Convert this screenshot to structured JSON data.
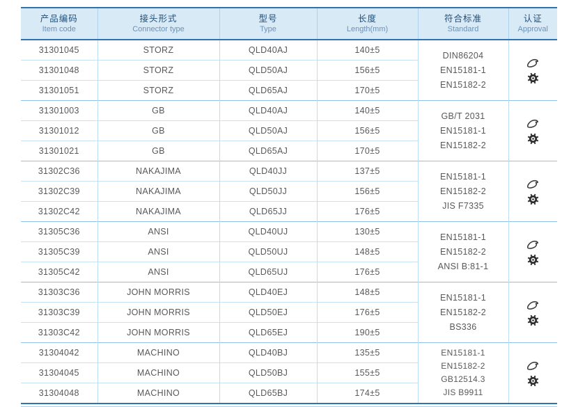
{
  "table": {
    "columns": [
      {
        "zh": "产品编码",
        "en": "Item code"
      },
      {
        "zh": "接头形式",
        "en": "Connector type"
      },
      {
        "zh": "型号",
        "en": "Type"
      },
      {
        "zh": "长度",
        "en": "Length(mm)"
      },
      {
        "zh": "符合标准",
        "en": "Standard"
      },
      {
        "zh": "认证",
        "en": "Approval"
      }
    ],
    "approval_icon_names": [
      "certificate-logo-icon",
      "ship-wheel-mark-icon"
    ],
    "colors": {
      "border_dark": "#2e74b5",
      "header_bg": "#d9eaf7",
      "header_zh_text": "#1f4e79",
      "header_en_text": "#6b91b8",
      "body_text": "#595959",
      "row_line": "#c9e3f6",
      "group_line": "#8fc1e8",
      "column_line": "#bcdcf4"
    },
    "groups": [
      {
        "rows": [
          {
            "code": "31301045",
            "connector": "STORZ",
            "type": "QLD40AJ",
            "length": "140±5"
          },
          {
            "code": "31301048",
            "connector": "STORZ",
            "type": "QLD50AJ",
            "length": "156±5"
          },
          {
            "code": "31301051",
            "connector": "STORZ",
            "type": "QLD65AJ",
            "length": "170±5"
          }
        ],
        "standards": [
          "DIN86204",
          "EN15181-1",
          "EN15182-2"
        ]
      },
      {
        "rows": [
          {
            "code": "31301003",
            "connector": "GB",
            "type": "QLD40AJ",
            "length": "140±5"
          },
          {
            "code": "31301012",
            "connector": "GB",
            "type": "QLD50AJ",
            "length": "156±5"
          },
          {
            "code": "31301021",
            "connector": "GB",
            "type": "QLD65AJ",
            "length": "170±5"
          }
        ],
        "standards": [
          "GB/T 2031",
          "EN15181-1",
          "EN15182-2"
        ]
      },
      {
        "rows": [
          {
            "code": "31302C36",
            "connector": "NAKAJIMA",
            "type": "QLD40JJ",
            "length": "137±5"
          },
          {
            "code": "31302C39",
            "connector": "NAKAJIMA",
            "type": "QLD50JJ",
            "length": "156±5"
          },
          {
            "code": "31302C42",
            "connector": "NAKAJIMA",
            "type": "QLD65JJ",
            "length": "176±5"
          }
        ],
        "standards": [
          "EN15181-1",
          "EN15182-2",
          "JIS F7335"
        ]
      },
      {
        "rows": [
          {
            "code": "31305C36",
            "connector": "ANSI",
            "type": "QLD40UJ",
            "length": "130±5"
          },
          {
            "code": "31305C39",
            "connector": "ANSI",
            "type": "QLD50UJ",
            "length": "148±5"
          },
          {
            "code": "31305C42",
            "connector": "ANSI",
            "type": "QLD65UJ",
            "length": "176±5"
          }
        ],
        "standards": [
          "EN15181-1",
          "EN15182-2",
          "ANSI B:81-1"
        ]
      },
      {
        "rows": [
          {
            "code": "31303C36",
            "connector": "JOHN MORRIS",
            "type": "QLD40EJ",
            "length": "148±5"
          },
          {
            "code": "31303C39",
            "connector": "JOHN MORRIS",
            "type": "QLD50EJ",
            "length": "176±5"
          },
          {
            "code": "31303C42",
            "connector": "JOHN MORRIS",
            "type": "QLD65EJ",
            "length": "190±5"
          }
        ],
        "standards": [
          "EN15181-1",
          "EN15182-2",
          "BS336"
        ]
      },
      {
        "rows": [
          {
            "code": "31304042",
            "connector": "MACHINO",
            "type": "QLD40BJ",
            "length": "135±5"
          },
          {
            "code": "31304045",
            "connector": "MACHINO",
            "type": "QLD50BJ",
            "length": "155±5"
          },
          {
            "code": "31304048",
            "connector": "MACHINO",
            "type": "QLD65BJ",
            "length": "174±5"
          }
        ],
        "standards": [
          "EN15181-1",
          "EN15182-2",
          "GB12514.3",
          "JIS B9911"
        ]
      }
    ]
  }
}
